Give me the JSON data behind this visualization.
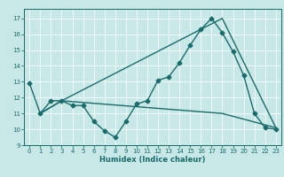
{
  "xlabel": "Humidex (Indice chaleur)",
  "bg_color": "#c8e8e8",
  "line_color": "#1a6b6b",
  "grid_color": "#ffffff",
  "xlim": [
    -0.5,
    23.5
  ],
  "ylim": [
    9.0,
    17.6
  ],
  "yticks": [
    9,
    10,
    11,
    12,
    13,
    14,
    15,
    16,
    17
  ],
  "xticks": [
    0,
    1,
    2,
    3,
    4,
    5,
    6,
    7,
    8,
    9,
    10,
    11,
    12,
    13,
    14,
    15,
    16,
    17,
    18,
    19,
    20,
    21,
    22,
    23
  ],
  "line1_x": [
    0,
    1,
    2,
    3,
    4,
    5,
    6,
    7,
    8,
    9,
    10,
    11,
    12,
    13,
    14,
    15,
    16,
    17,
    18,
    19,
    20,
    21,
    22,
    23
  ],
  "line1_y": [
    12.9,
    11.0,
    11.8,
    11.8,
    11.5,
    11.5,
    10.5,
    9.9,
    9.5,
    10.5,
    11.6,
    11.8,
    13.1,
    13.3,
    14.2,
    15.3,
    16.3,
    17.0,
    16.1,
    14.9,
    13.4,
    11.0,
    10.1,
    10.0
  ],
  "line2_x": [
    1,
    3,
    18,
    23
  ],
  "line2_y": [
    11.0,
    11.8,
    17.0,
    10.1
  ],
  "line3_x": [
    1,
    3,
    18,
    23
  ],
  "line3_y": [
    11.0,
    11.8,
    11.0,
    10.1
  ],
  "tick_fontsize": 5.0,
  "xlabel_fontsize": 6.0,
  "lw": 1.0,
  "ms": 2.5
}
